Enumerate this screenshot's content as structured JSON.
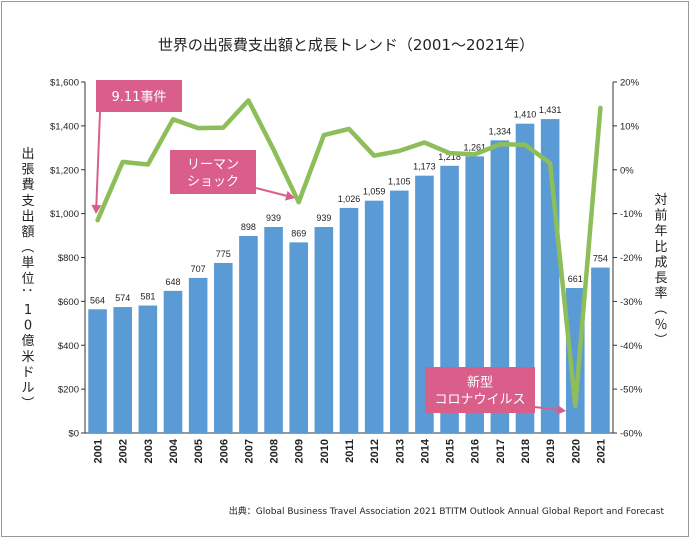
{
  "chart_data": {
    "type": "bar",
    "title": "世界の出張費支出額と成長トレンド（2001〜2021年）",
    "categories": [
      "2001",
      "2002",
      "2003",
      "2004",
      "2005",
      "2006",
      "2007",
      "2008",
      "2009",
      "2010",
      "2011",
      "2012",
      "2013",
      "2014",
      "2015",
      "2016",
      "2017",
      "2018",
      "2019",
      "2020",
      "2021"
    ],
    "series": [
      {
        "type": "bar",
        "axis": "left",
        "values": [
          564,
          574,
          581,
          648,
          707,
          775,
          898,
          939,
          869,
          939,
          1026,
          1059,
          1105,
          1173,
          1218,
          1261,
          1334,
          1410,
          1431,
          661,
          754
        ],
        "labels": [
          "564",
          "574",
          "581",
          "648",
          "707",
          "775",
          "898",
          "939",
          "869",
          "939",
          "1,026",
          "1,059",
          "1,105",
          "1,173",
          "1,218",
          "1,261",
          "1,334",
          "1,410",
          "1,431",
          "661",
          "754"
        ],
        "color": "#5b9bd5"
      },
      {
        "type": "line",
        "axis": "right",
        "values": [
          -11.5,
          1.8,
          1.2,
          11.5,
          9.5,
          9.6,
          15.8,
          4.6,
          -7.4,
          7.9,
          9.3,
          3.2,
          4.3,
          6.2,
          3.8,
          3.5,
          5.8,
          5.7,
          1.5,
          -53.8,
          14.1
        ],
        "color": "#8dbe5a"
      }
    ],
    "ylabel": "出張費支出額（単位：10億米ドル）",
    "y2label": "対前年比成長率（％）",
    "ylim": [
      0,
      1600
    ],
    "y2lim": [
      -60,
      20
    ],
    "yticks": [
      "$0",
      "$200",
      "$400",
      "$600",
      "$800",
      "$1,000",
      "$1,200",
      "$1,400",
      "$1,600"
    ],
    "y2ticks": [
      "-60%",
      "-50%",
      "-40%",
      "-30%",
      "-20%",
      "-10%",
      "0%",
      "10%",
      "20%"
    ],
    "grid": false,
    "annotations": [
      {
        "lines": [
          "9.11事件"
        ],
        "color": "#d95f8a"
      },
      {
        "lines": [
          "リーマン",
          "ショック"
        ],
        "color": "#d95f8a"
      },
      {
        "lines": [
          "新型",
          "コロナウイルス"
        ],
        "color": "#d95f8a"
      }
    ],
    "source": "出典：Global Business Travel Association 2021 BTITM Outlook Annual Global Report and Forecast"
  }
}
